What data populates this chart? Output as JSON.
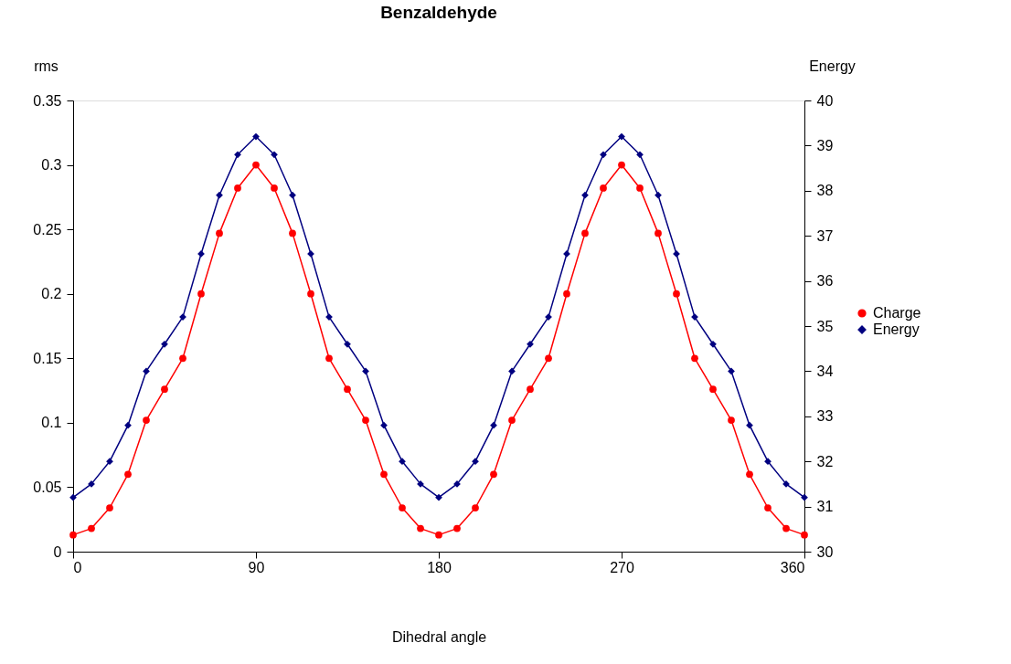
{
  "chart_data": {
    "type": "line",
    "title": "Benzaldehyde",
    "xlabel": "Dihedral angle",
    "ylabel": "rms",
    "y2label": "Energy",
    "x": [
      0,
      9,
      18,
      27,
      36,
      45,
      54,
      63,
      72,
      81,
      90,
      99,
      108,
      117,
      126,
      135,
      144,
      153,
      162,
      171,
      180,
      189,
      198,
      207,
      216,
      225,
      234,
      243,
      252,
      261,
      270,
      279,
      288,
      297,
      306,
      315,
      324,
      333,
      342,
      351,
      360
    ],
    "series": [
      {
        "name": "Charge",
        "color": "#ff0000",
        "marker": "circle",
        "values": [
          0.013,
          0.018,
          0.034,
          0.06,
          0.102,
          0.126,
          0.15,
          0.2,
          0.247,
          0.282,
          0.3,
          0.282,
          0.247,
          0.2,
          0.15,
          0.126,
          0.102,
          0.06,
          0.034,
          0.018,
          0.013,
          0.018,
          0.034,
          0.06,
          0.102,
          0.126,
          0.15,
          0.2,
          0.247,
          0.282,
          0.3,
          0.282,
          0.247,
          0.2,
          0.15,
          0.126,
          0.102,
          0.06,
          0.034,
          0.018,
          0.013
        ]
      },
      {
        "name": "Energy",
        "color": "#000080",
        "marker": "diamond",
        "axis": "y2",
        "values": [
          31.2,
          31.5,
          32.0,
          32.8,
          34.0,
          34.6,
          35.2,
          36.6,
          37.9,
          38.8,
          39.2,
          38.8,
          37.9,
          36.6,
          35.2,
          34.6,
          34.0,
          32.8,
          32.0,
          31.5,
          31.2,
          31.5,
          32.0,
          32.8,
          34.0,
          34.6,
          35.2,
          36.6,
          37.9,
          38.8,
          39.2,
          38.8,
          37.9,
          36.6,
          35.2,
          34.6,
          34.0,
          32.8,
          32.0,
          31.5,
          31.2
        ]
      }
    ],
    "xlim": [
      0,
      360
    ],
    "xticks": [
      0,
      90,
      180,
      270,
      360
    ],
    "ylim": [
      0,
      0.35
    ],
    "yticks": [
      0,
      0.05,
      0.1,
      0.15,
      0.2,
      0.25,
      0.3,
      0.35
    ],
    "y2lim": [
      30,
      40
    ],
    "y2ticks": [
      30,
      31,
      32,
      33,
      34,
      35,
      36,
      37,
      38,
      39,
      40
    ],
    "legend": "right",
    "grid": false,
    "line_style": "solid"
  }
}
